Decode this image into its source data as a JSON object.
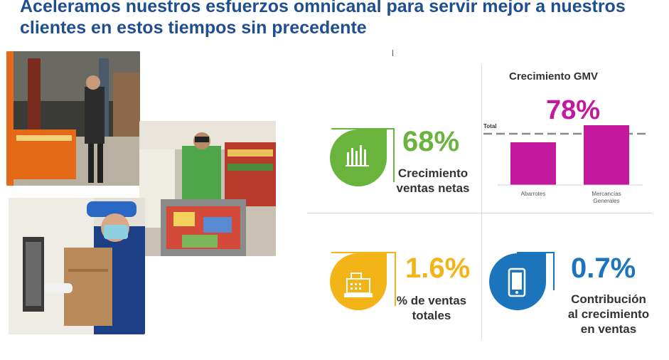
{
  "title": "Aceleramos nuestros esfuerzos omnicanal para servir mejor a nuestros clientes en estos tiempos sin precedente",
  "stats": {
    "net_sales": {
      "value": "68%",
      "label_line1": "Crecimiento",
      "label_line2": "ventas netas",
      "color": "#6ab43e",
      "icon": "bar-chart-icon"
    },
    "total_sales": {
      "value": "1.6%",
      "label_line1": "% de ventas",
      "label_line2": "totales",
      "color": "#f2b417",
      "icon": "cash-register-icon"
    },
    "contribution": {
      "value": "0.7%",
      "label_line1": "Contribución",
      "label_line2": "al crecimiento",
      "label_line3": "en ventas",
      "color": "#1c75bc",
      "icon": "smartphone-icon"
    }
  },
  "chart_data": {
    "type": "bar",
    "title": "Crecimiento GMV",
    "headline": "78%",
    "reference_label": "Total",
    "categories": [
      "Abarrotes",
      "Mercancías Generales"
    ],
    "category_lines": [
      [
        "Abarrotes"
      ],
      [
        "Mercancías",
        "Generales"
      ]
    ],
    "bar_color": "#c4199f"
  }
}
